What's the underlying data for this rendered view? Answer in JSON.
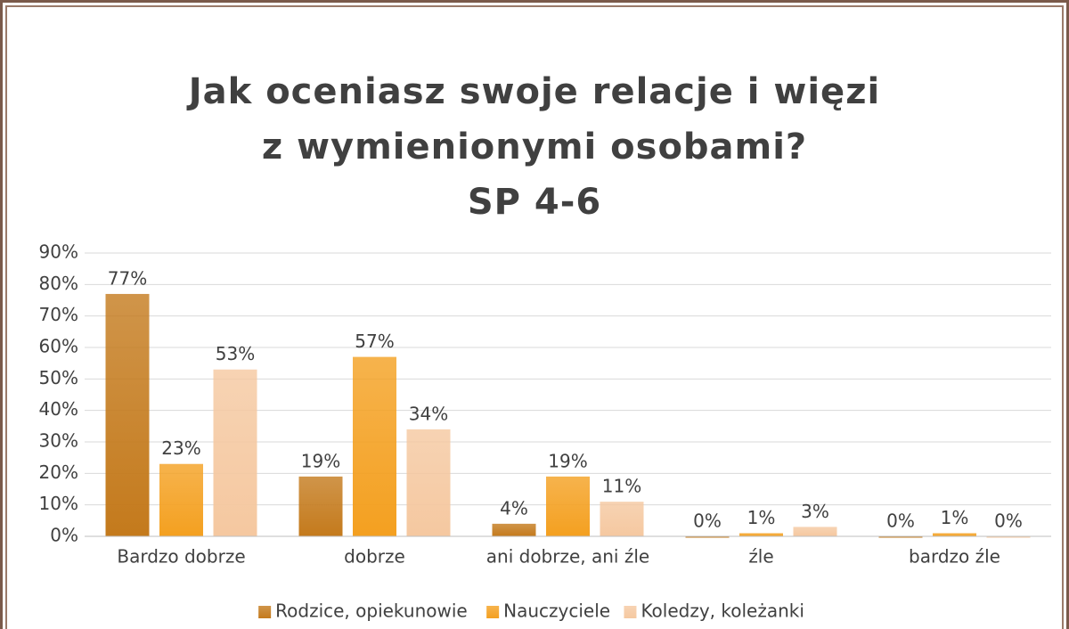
{
  "chart_data": {
    "type": "bar",
    "title": "Jak oceniasz swoje relacje i więzi z wymienionymi osobami?",
    "subtitle": "SP 4-6",
    "categories": [
      "Bardzo dobrze",
      "dobrze",
      "ani dobrze, ani źle",
      "źle",
      "bardzo źle"
    ],
    "series": [
      {
        "name": "Rodzice, opiekunowie",
        "color": "#c47a1c",
        "values": [
          77,
          19,
          4,
          0,
          0
        ],
        "value_labels": [
          "77%",
          "19%",
          "4%",
          "0%",
          "0%"
        ]
      },
      {
        "name": "Nauczyciele",
        "color": "#f4a020",
        "values": [
          23,
          57,
          19,
          1,
          1
        ],
        "value_labels": [
          "23%",
          "57%",
          "19%",
          "1%",
          "1%"
        ]
      },
      {
        "name": "Koledzy, koleżanki",
        "color": "#f5c8a0",
        "values": [
          53,
          34,
          11,
          3,
          0
        ],
        "value_labels": [
          "53%",
          "34%",
          "11%",
          "3%",
          "0%"
        ]
      }
    ],
    "ylim": [
      0,
      90
    ],
    "yticks": [
      {
        "value": 0,
        "label": "0%"
      },
      {
        "value": 10,
        "label": "10%"
      },
      {
        "value": 20,
        "label": "20%"
      },
      {
        "value": 30,
        "label": "30%"
      },
      {
        "value": 40,
        "label": "40%"
      },
      {
        "value": 50,
        "label": "50%"
      },
      {
        "value": 60,
        "label": "60%"
      },
      {
        "value": 70,
        "label": "70%"
      },
      {
        "value": 80,
        "label": "80%"
      },
      {
        "value": 90,
        "label": "90%"
      }
    ],
    "grid": true,
    "legend": "bottom"
  }
}
